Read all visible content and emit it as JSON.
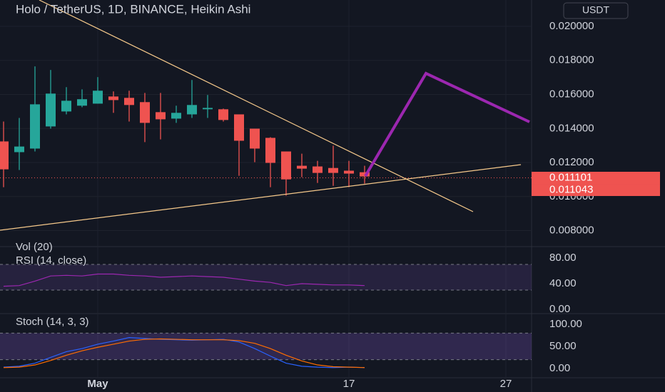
{
  "currency": "USDT",
  "chart_data": [
    {
      "type": "candlestick",
      "title": "Holo / TetherUS, 1D, BINANCE, Heikin Ashi",
      "volume_label": "Vol (20)",
      "up_color": "#26a69a",
      "down_color": "#ef5350",
      "open": [
        0.01324,
        0.01261,
        0.01282,
        0.01412,
        0.015,
        0.01534,
        0.01546,
        0.01588,
        0.0158,
        0.01555,
        0.01496,
        0.01458,
        0.01483,
        0.01513,
        0.01513,
        0.01483,
        0.01399,
        0.01345,
        0.01265,
        0.01181,
        0.01177,
        0.01168,
        0.01152,
        0.01143
      ],
      "high": [
        0.01441,
        0.01462,
        0.01765,
        0.01744,
        0.01643,
        0.0163,
        0.01702,
        0.01618,
        0.01622,
        0.01609,
        0.01609,
        0.01534,
        0.01685,
        0.01597,
        0.01517,
        0.01483,
        0.01399,
        0.01349,
        0.01265,
        0.01252,
        0.0121,
        0.01299,
        0.0121,
        0.01181
      ],
      "low": [
        0.01055,
        0.01156,
        0.01265,
        0.01399,
        0.01483,
        0.01525,
        0.01546,
        0.01492,
        0.01441,
        0.0132,
        0.01336,
        0.01433,
        0.01462,
        0.01462,
        0.01441,
        0.01122,
        0.01202,
        0.01055,
        0.01005,
        0.01114,
        0.0108,
        0.01063,
        0.01055,
        0.01076
      ],
      "close": [
        0.0116,
        0.01294,
        0.01542,
        0.01605,
        0.01563,
        0.01572,
        0.01622,
        0.01567,
        0.01538,
        0.01433,
        0.01454,
        0.01492,
        0.01538,
        0.01521,
        0.0145,
        0.01328,
        0.01282,
        0.01198,
        0.01101,
        0.01164,
        0.01139,
        0.01139,
        0.01135,
        0.01118
      ],
      "price_labels": [
        0.011101,
        0.011043
      ],
      "ylim": [
        0.00706,
        0.02155
      ],
      "yticks": [
        {
          "value": 0.008,
          "label": "0.008000"
        },
        {
          "value": 0.01,
          "label": "0.010000"
        },
        {
          "value": 0.012,
          "label": "0.012000"
        },
        {
          "value": 0.014,
          "label": "0.014000"
        },
        {
          "value": 0.016,
          "label": "0.016000"
        },
        {
          "value": 0.018,
          "label": "0.018000"
        },
        {
          "value": 0.02,
          "label": "0.020000"
        }
      ],
      "xticks": [
        {
          "value": 6,
          "label": "May"
        },
        {
          "value": 22,
          "label": "17"
        },
        {
          "value": 32,
          "label": "27"
        }
      ]
    },
    {
      "type": "line",
      "title": "RSI (14, close)",
      "ylim": [
        -3.3,
        93.3
      ],
      "bands": [
        30,
        70
      ],
      "yticks": [
        {
          "value": 0,
          "label": "0.00"
        },
        {
          "value": 40,
          "label": "40.00"
        },
        {
          "value": 80,
          "label": "80.00"
        }
      ],
      "series": [
        {
          "color": "#9c27b0",
          "values": [
            36,
            37,
            44,
            52,
            53,
            52,
            55,
            55,
            53,
            52,
            50,
            51,
            52,
            51,
            50,
            47,
            44,
            42,
            37,
            40,
            39,
            38,
            38,
            37
          ]
        }
      ]
    },
    {
      "type": "line",
      "title": "Stoch (14, 3, 3)",
      "ylim": [
        -21,
        121
      ],
      "bands": [
        20,
        80
      ],
      "yticks": [
        {
          "value": 0,
          "label": "0.00"
        },
        {
          "value": 50,
          "label": "50.00"
        },
        {
          "value": 100,
          "label": "100.00"
        }
      ],
      "series": [
        {
          "color": "#2962ff",
          "values": [
            3,
            5,
            12,
            25,
            38,
            45,
            55,
            62,
            70,
            68,
            66,
            65,
            64,
            65,
            66,
            60,
            45,
            28,
            12,
            5,
            3,
            2,
            3,
            2
          ]
        },
        {
          "color": "#ff6d00",
          "values": [
            2,
            3,
            8,
            18,
            30,
            40,
            48,
            55,
            62,
            66,
            67,
            66,
            65,
            65,
            65,
            63,
            57,
            45,
            30,
            17,
            8,
            4,
            3,
            2
          ]
        }
      ]
    }
  ]
}
